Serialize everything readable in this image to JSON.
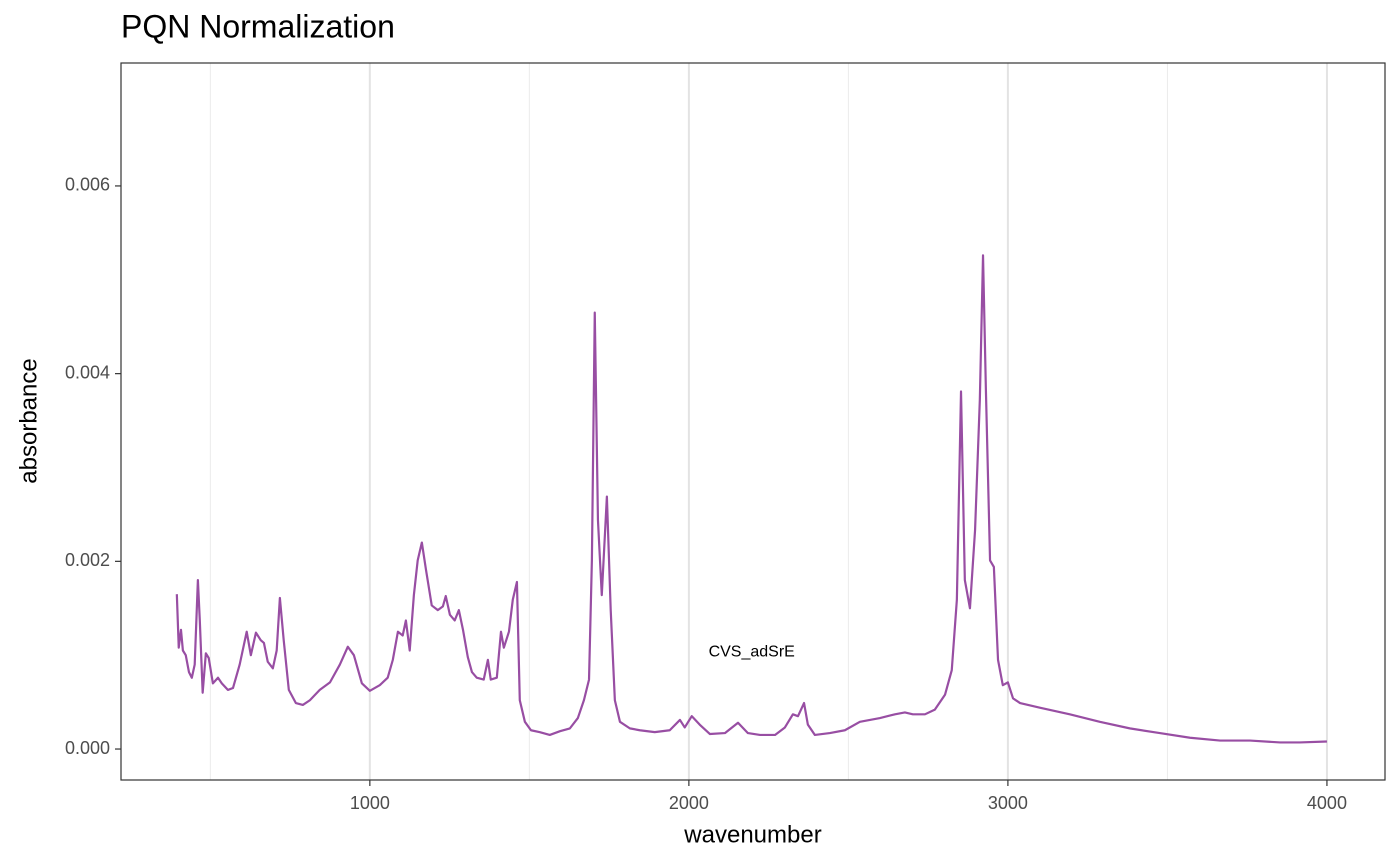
{
  "chart_data": {
    "type": "line",
    "title": "PQN Normalization",
    "x_label": "wavenumber",
    "y_label": "absorbance",
    "xlim": [
      220,
      4182
    ],
    "ylim": [
      -0.00033,
      0.00731
    ],
    "xticks": [
      1000,
      2000,
      3000,
      4000
    ],
    "xminor": [
      500,
      1500,
      2500,
      3500
    ],
    "yticks": [
      {
        "value": 0,
        "label": "0.000"
      },
      {
        "value": 0.002,
        "label": "0.002"
      },
      {
        "value": 0.004,
        "label": "0.004"
      },
      {
        "value": 0.006,
        "label": "0.006"
      }
    ],
    "grid": "x",
    "annotation": {
      "text": "CVS_adSrE",
      "x": 2197,
      "y": 0.00103
    },
    "x": [
      395,
      401,
      408,
      414,
      423,
      433,
      442,
      451,
      461,
      467,
      476,
      486,
      495,
      508,
      524,
      536,
      555,
      571,
      592,
      614,
      627,
      643,
      658,
      668,
      680,
      696,
      708,
      718,
      730,
      746,
      768,
      790,
      812,
      843,
      875,
      906,
      931,
      950,
      975,
      1000,
      1031,
      1056,
      1072,
      1088,
      1103,
      1113,
      1125,
      1138,
      1150,
      1163,
      1176,
      1194,
      1213,
      1229,
      1238,
      1251,
      1266,
      1279,
      1292,
      1307,
      1320,
      1335,
      1357,
      1370,
      1379,
      1398,
      1411,
      1420,
      1436,
      1448,
      1461,
      1470,
      1486,
      1505,
      1533,
      1564,
      1596,
      1627,
      1652,
      1671,
      1687,
      1696,
      1705,
      1715,
      1727,
      1743,
      1755,
      1768,
      1784,
      1815,
      1846,
      1893,
      1940,
      1972,
      1987,
      2009,
      2034,
      2066,
      2113,
      2154,
      2185,
      2223,
      2270,
      2301,
      2326,
      2342,
      2361,
      2373,
      2395,
      2442,
      2489,
      2536,
      2599,
      2646,
      2677,
      2702,
      2740,
      2771,
      2803,
      2824,
      2840,
      2853,
      2865,
      2881,
      2897,
      2912,
      2922,
      2931,
      2944,
      2956,
      2969,
      2984,
      3000,
      3016,
      3038,
      3100,
      3194,
      3288,
      3382,
      3476,
      3571,
      3665,
      3759,
      3853,
      3915,
      4000
    ],
    "series": [
      {
        "name": "CVS_adSrE",
        "color": "#984ea3",
        "values": [
          0.00165,
          0.00108,
          0.00127,
          0.00105,
          0.001,
          0.00082,
          0.00076,
          0.0009,
          0.0018,
          0.00137,
          0.0006,
          0.00102,
          0.00097,
          0.0007,
          0.00076,
          0.0007,
          0.00063,
          0.00065,
          0.0009,
          0.00125,
          0.001,
          0.00124,
          0.00116,
          0.00113,
          0.00093,
          0.00086,
          0.00105,
          0.00161,
          0.00116,
          0.00063,
          0.00049,
          0.00047,
          0.00052,
          0.00063,
          0.00071,
          0.0009,
          0.00109,
          0.001,
          0.0007,
          0.00062,
          0.00068,
          0.00076,
          0.00095,
          0.00125,
          0.00121,
          0.00137,
          0.00105,
          0.00164,
          0.00201,
          0.0022,
          0.00191,
          0.00153,
          0.00148,
          0.00152,
          0.00163,
          0.00143,
          0.00137,
          0.00148,
          0.00127,
          0.00098,
          0.00082,
          0.00076,
          0.00074,
          0.00095,
          0.00074,
          0.00076,
          0.00125,
          0.00108,
          0.00125,
          0.00159,
          0.00178,
          0.00052,
          0.00029,
          0.0002,
          0.00018,
          0.00015,
          0.00019,
          0.00022,
          0.00033,
          0.00052,
          0.00074,
          0.00201,
          0.00465,
          0.00244,
          0.00164,
          0.00269,
          0.00148,
          0.00052,
          0.00029,
          0.00022,
          0.0002,
          0.00018,
          0.0002,
          0.00031,
          0.00023,
          0.00035,
          0.00026,
          0.00016,
          0.00017,
          0.00028,
          0.00017,
          0.00015,
          0.00015,
          0.00023,
          0.00037,
          0.00035,
          0.00049,
          0.00026,
          0.00015,
          0.00017,
          0.0002,
          0.00029,
          0.00033,
          0.00037,
          0.00039,
          0.00037,
          0.00037,
          0.00042,
          0.00058,
          0.00084,
          0.00159,
          0.00381,
          0.0018,
          0.0015,
          0.00233,
          0.00372,
          0.00526,
          0.00383,
          0.00201,
          0.00194,
          0.00095,
          0.00068,
          0.00071,
          0.00054,
          0.00049,
          0.00044,
          0.00037,
          0.00029,
          0.00022,
          0.00017,
          0.00012,
          9e-05,
          9e-05,
          7e-05,
          7e-05,
          8e-05
        ]
      }
    ]
  }
}
